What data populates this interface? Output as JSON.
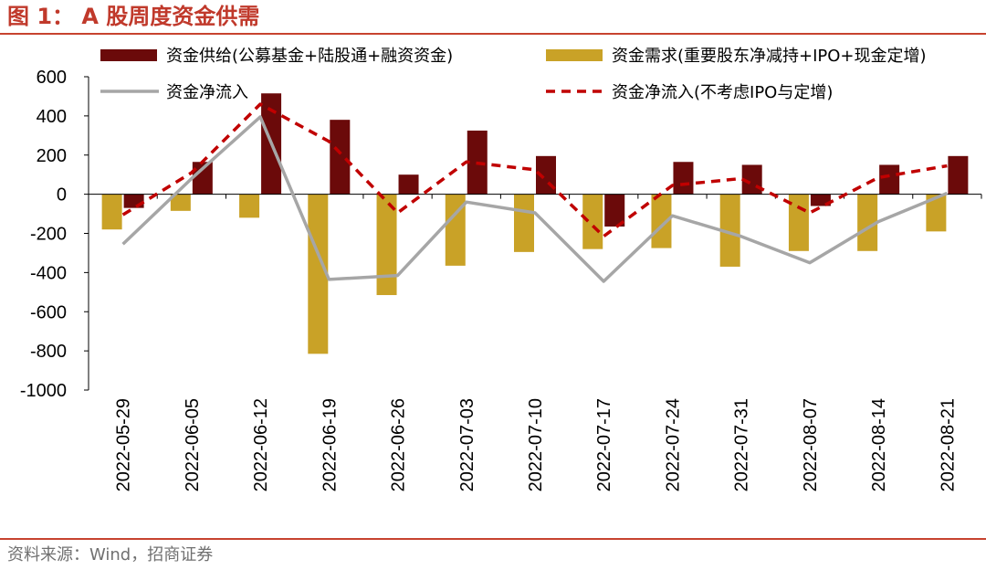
{
  "header": {
    "title": "图 1： A 股周度资金供需"
  },
  "footer": {
    "source": "资料来源：Wind，招商证券"
  },
  "colors": {
    "accent": "#c7432f",
    "supply": "#6b0a0a",
    "demand": "#c9a227",
    "net": "#a6a6a6",
    "net_ex": "#c00000"
  },
  "chart_data": {
    "type": "bar",
    "title": "A 股周度资金供需",
    "categories": [
      "2022-05-29",
      "2022-06-05",
      "2022-06-12",
      "2022-06-19",
      "2022-06-26",
      "2022-07-03",
      "2022-07-10",
      "2022-07-17",
      "2022-07-24",
      "2022-07-31",
      "2022-08-07",
      "2022-08-14",
      "2022-08-21"
    ],
    "ylim": [
      -1000,
      600
    ],
    "yticks": [
      "600",
      "400",
      "200",
      "0",
      "-200",
      "-400",
      "-600",
      "-800",
      "-1000"
    ],
    "grid": false,
    "legend_position": "top",
    "series": [
      {
        "name": "资金供给(公募基金+陆股通+融资资金)",
        "kind": "bar",
        "values": [
          -70,
          165,
          515,
          380,
          100,
          325,
          195,
          -165,
          165,
          150,
          -60,
          150,
          195
        ]
      },
      {
        "name": "资金需求(重要股东净减持+IPO+现金定增)",
        "kind": "bar",
        "values": [
          -180,
          -85,
          -120,
          -815,
          -515,
          -365,
          -295,
          -280,
          -275,
          -370,
          -290,
          -290,
          -190
        ]
      },
      {
        "name": "资金净流入",
        "kind": "line",
        "values": [
          -255,
          80,
          395,
          -435,
          -415,
          -40,
          -95,
          -445,
          -110,
          -215,
          -350,
          -140,
          5
        ]
      },
      {
        "name": "资金净流入(不考虑IPO与定增)",
        "kind": "line-dashed",
        "values": [
          -105,
          110,
          460,
          270,
          -95,
          165,
          125,
          -215,
          45,
          80,
          -95,
          85,
          145
        ]
      }
    ]
  }
}
